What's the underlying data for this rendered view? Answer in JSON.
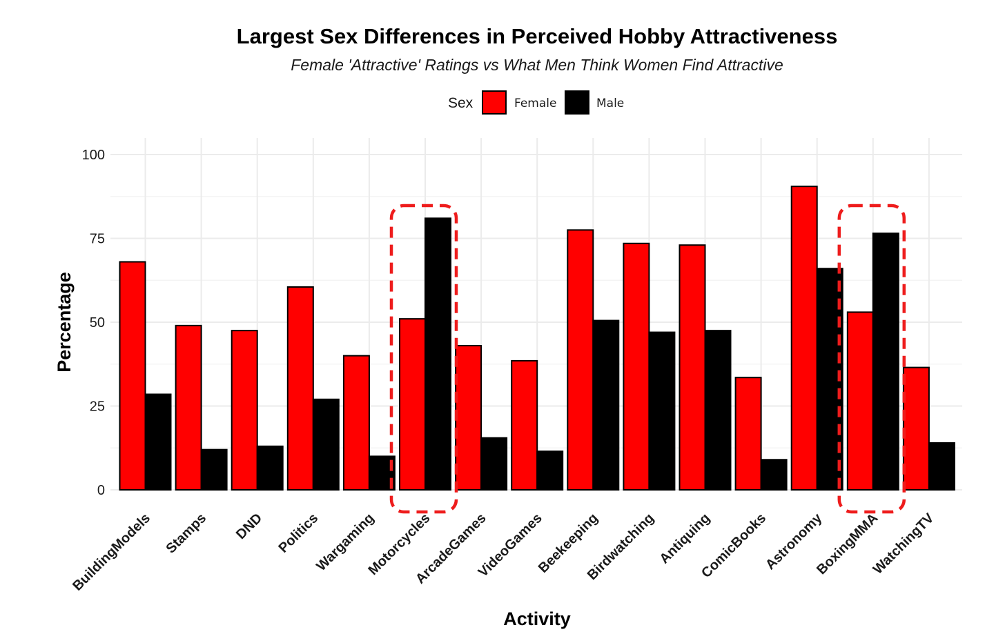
{
  "chart_data": {
    "type": "bar",
    "title": "Largest Sex Differences in Perceived Hobby Attractiveness",
    "subtitle": "Female 'Attractive' Ratings vs What Men Think Women Find Attractive",
    "xlabel": "Activity",
    "ylabel": "Percentage",
    "ylim": [
      0,
      100
    ],
    "yticks": [
      0,
      25,
      50,
      75,
      100
    ],
    "grid": true,
    "legend": {
      "title": "Sex",
      "position": "top"
    },
    "categories": [
      "BuildingModels",
      "Stamps",
      "DND",
      "Politics",
      "Wargaming",
      "Motorcycles",
      "ArcadeGames",
      "VideoGames",
      "Beekeeping",
      "Birdwatching",
      "Antiquing",
      "ComicBooks",
      "Astronomy",
      "BoxingMMA",
      "WatchingTV"
    ],
    "series": [
      {
        "name": "Female",
        "color": "#ff0000",
        "values": [
          68,
          49,
          47.5,
          60.5,
          40,
          51,
          43,
          38.5,
          77.5,
          73.5,
          73,
          33.5,
          90.5,
          53,
          36.5
        ]
      },
      {
        "name": "Male",
        "color": "#000000",
        "values": [
          28.5,
          12,
          13,
          27,
          10,
          81,
          15.5,
          11.5,
          50.5,
          47,
          47.5,
          9,
          66,
          76.5,
          14
        ]
      }
    ],
    "highlighted": [
      "Motorcycles",
      "BoxingMMA"
    ]
  }
}
